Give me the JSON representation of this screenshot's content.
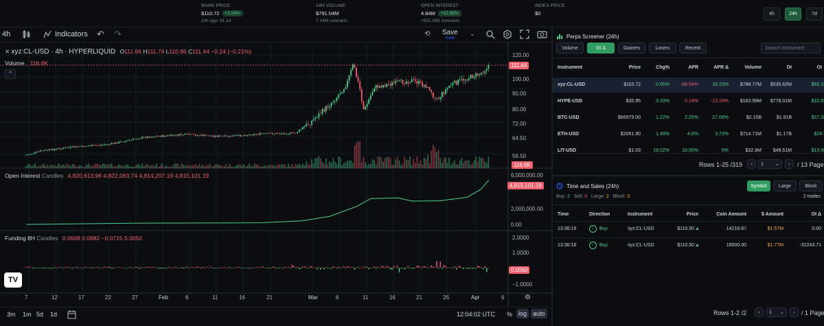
{
  "header": {
    "mark_price": {
      "label": "MARK PRICE",
      "value": "$110.72",
      "change": "+1.04%",
      "sub": "24h ago: $1.14"
    },
    "volume_24h": {
      "label": "24H VOLUME",
      "value": "$791.04M",
      "sub": "7.14M contracts"
    },
    "open_interest": {
      "label": "OPEN INTEREST",
      "value": "4.84M",
      "change": "+12.85%",
      "sub": "+551.03K contracts"
    },
    "index_price": {
      "label": "INDEX PRICE",
      "value": "$0"
    },
    "timeframes": [
      "4h",
      "24h",
      "7d"
    ],
    "active_timeframe": "24h"
  },
  "toolbar": {
    "interval": "4h",
    "indicators_label": "Indicators",
    "save_label": "Save",
    "save_sub": "Save"
  },
  "chart": {
    "symbol_line": "xyz:CL-USD · 4h · HYPERLIQUID",
    "ohlc": {
      "o_label": "O",
      "o": "111.66",
      "h_label": "H",
      "h": "111.74",
      "l_label": "L",
      "l": "110.86",
      "c_label": "C",
      "c": "111.44",
      "chg": "−0.24 (−0.21%)"
    },
    "volume_label": "Volume",
    "volume_value": "116.6K",
    "price_ticks": [
      "120.00",
      "111.44",
      "100.00",
      "90.00",
      "80.00",
      "72.00",
      "64.50",
      "56.50",
      "116.6K"
    ],
    "oi_label": "Open Interest",
    "oi_type": "Candles",
    "oi_values": [
      "4,820,613.96",
      "4,822,063.74",
      "4,814,207.19",
      "4,815,101.19"
    ],
    "oi_ticks": [
      "6,000,000.00",
      "4,815,101.19",
      "2,000,000.00",
      "0.00"
    ],
    "funding_label": "Funding 8H",
    "funding_type": "Candles",
    "funding_values": [
      "0.0608",
      "0.0682",
      "−0.0715",
      "0.0050"
    ],
    "funding_ticks": [
      "2.0000",
      "1.0000",
      "0.0050",
      "−1.0000"
    ],
    "time_ticks": [
      "7",
      "12",
      "17",
      "22",
      "27",
      "Feb",
      "6",
      "11",
      "16",
      "21",
      "Mar",
      "6",
      "11",
      "16",
      "21",
      "26",
      "Apr",
      "6"
    ]
  },
  "bottom": {
    "ranges": [
      "3m",
      "1m",
      "5d",
      "1d"
    ],
    "clock": "12:04:02 UTC",
    "pct": "%",
    "log": "log",
    "auto": "auto"
  },
  "screener": {
    "title": "Perps Screener (24h)",
    "tabs": [
      "Volume",
      "OI Δ",
      "Gainers",
      "Losers",
      "Recent"
    ],
    "active_tab": "OI Δ",
    "search_placeholder": "Search Instrument",
    "columns": [
      "Instrument",
      "Price",
      "Chg%",
      "APR",
      "APR Δ",
      "Volume",
      "OI",
      "OI"
    ],
    "rows": [
      {
        "instrument": "xyz:CL-USD",
        "price": "$110.72",
        "chg": "0.95%",
        "apr": "-68.54%",
        "apr_delta": "16.23%",
        "volume": "$788.77M",
        "oi": "$535.62M",
        "oi2": "$65.15"
      },
      {
        "instrument": "HYPE-USD",
        "price": "$35.95",
        "chg": "3.33%",
        "apr": "-2.24%",
        "apr_delta": "-13.19%",
        "volume": "$163.99M",
        "oi": "$778.01M",
        "oi2": "$32.69"
      },
      {
        "instrument": "BTC-USD",
        "price": "$66979.00",
        "chg": "1.22%",
        "apr": "2.25%",
        "apr_delta": "27.08%",
        "volume": "$2.15B",
        "oi": "$1.91B",
        "oi2": "$27.33"
      },
      {
        "instrument": "ETH-USD",
        "price": "$2061.90",
        "chg": "1.49%",
        "apr": "4.6%",
        "apr_delta": "3.73%",
        "volume": "$714.71M",
        "oi": "$1.17B",
        "oi2": "$24.7"
      },
      {
        "instrument": "LIT-USD",
        "price": "$1.03",
        "chg": "19.02%",
        "apr": "10.95%",
        "apr_delta": "0%",
        "volume": "$32.8M",
        "oi": "$49.61M",
        "oi2": "$13.98"
      }
    ],
    "pagination": {
      "rows_label": "Rows 1-25 /319",
      "page": "1",
      "pages_label": "/ 13 Pages"
    }
  },
  "tas": {
    "title": "Time and Sales (24h)",
    "tabs": [
      "Symbol",
      "Large",
      "Block"
    ],
    "active_tab": "Symbol",
    "stats": {
      "buy_label": "Buy:",
      "buy": "2",
      "sell_label": "Sell:",
      "sell": "0",
      "large_label": "Large:",
      "large": "2",
      "block_label": "Block:",
      "block": "0"
    },
    "trades_label": "2 trades",
    "columns": [
      "Time",
      "Direction",
      "Instrument",
      "Price",
      "Coin Amount",
      "$ Amount",
      "OI Δ"
    ],
    "rows": [
      {
        "time": "13:36:19",
        "direction": "Buy",
        "instrument": "xyz:CL-USD",
        "price": "$110.50",
        "coin": "14216.87",
        "usd": "$1.57M",
        "oi": "0.00"
      },
      {
        "time": "13:36:18",
        "direction": "Buy",
        "instrument": "xyz:CL-USD",
        "price": "$110.50",
        "coin": "16000.00",
        "usd": "$1.77M",
        "oi": "-32243.71"
      }
    ],
    "pagination": {
      "rows_label": "Rows 1-2 /2",
      "page": "1",
      "pages_label": "/ 1 Pages"
    }
  },
  "colors": {
    "up": "#4fd18b",
    "down": "#f0616d",
    "accent": "#2f9d62",
    "bg": "#0b0d11"
  }
}
